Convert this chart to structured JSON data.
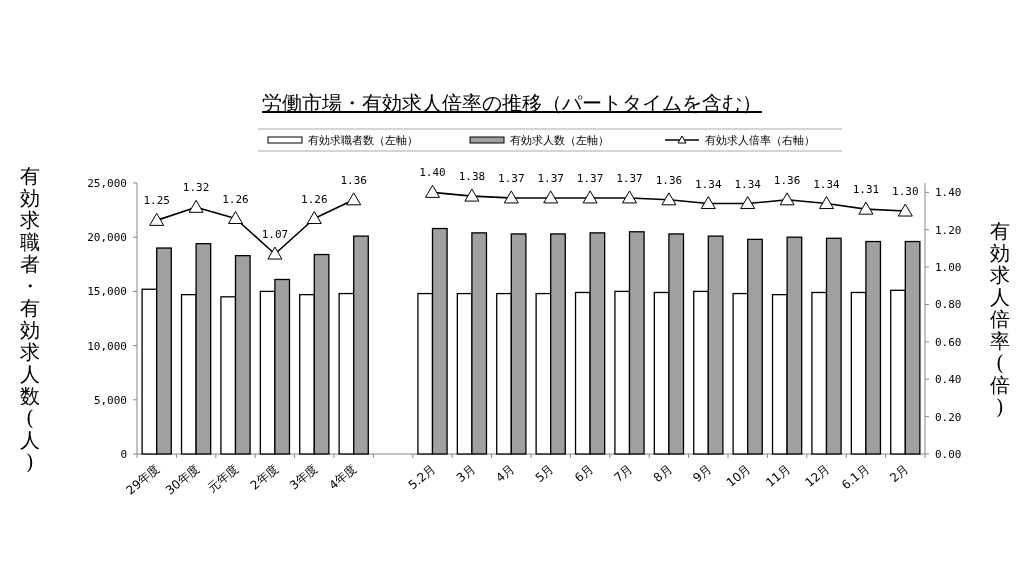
{
  "chart_data": {
    "type": "bar",
    "title": "労働市場・有効求人倍率の推移（パートタイムを含む）",
    "ylabel": "有効求職者・有効求人数(人)",
    "y2label": "有効求人倍率(倍)",
    "categories": [
      "29年度",
      "30年度",
      "元年度",
      "2年度",
      "3年度",
      "4年度",
      null,
      "5.2月",
      "3月",
      "4月",
      "5月",
      "6月",
      "7月",
      "8月",
      "9月",
      "10月",
      "11月",
      "12月",
      "6.1月",
      "2月"
    ],
    "series": [
      {
        "name": "有効求職者数（左軸）",
        "color": "#ffffff",
        "values": [
          15200,
          14700,
          14500,
          15000,
          14700,
          14800,
          null,
          14800,
          14800,
          14800,
          14800,
          14900,
          15000,
          14900,
          15000,
          14800,
          14700,
          14900,
          14900,
          15100
        ]
      },
      {
        "name": "有効求人数（左軸）",
        "color": "#a0a0a0",
        "values": [
          19000,
          19400,
          18300,
          16100,
          18400,
          20100,
          null,
          20800,
          20400,
          20300,
          20300,
          20400,
          20500,
          20300,
          20100,
          19800,
          20000,
          19900,
          19600,
          19600
        ]
      },
      {
        "name": "有効求人倍率（右軸）",
        "type": "line",
        "axis": "y2",
        "color": "#000000",
        "marker": "triangle",
        "values": [
          1.25,
          1.32,
          1.26,
          1.07,
          1.26,
          1.36,
          null,
          1.4,
          1.38,
          1.37,
          1.37,
          1.37,
          1.37,
          1.36,
          1.34,
          1.34,
          1.36,
          1.34,
          1.31,
          1.3
        ],
        "value_labels": [
          "1.25",
          "1.32",
          "1.26",
          "1.07",
          "1.26",
          "1.36",
          null,
          "1.40",
          "1.38",
          "1.37",
          "1.37",
          "1.37",
          "1.37",
          "1.36",
          "1.34",
          "1.34",
          "1.36",
          "1.34",
          "1.31",
          "1.30"
        ]
      }
    ],
    "ylim": [
      0,
      25000
    ],
    "yticks": [
      0,
      {
        "value": 5000,
        "label": "5,000"
      },
      {
        "value": 10000,
        "label": "10,000"
      },
      {
        "value": 15000,
        "label": "15,000"
      },
      {
        "value": 20000,
        "label": "20,000"
      },
      {
        "value": 25000,
        "label": "25,000"
      }
    ],
    "y2lim": [
      0,
      1.45
    ],
    "y2ticks": [
      {
        "value": 0,
        "label": "0.00"
      },
      {
        "value": 0.2,
        "label": "0.20"
      },
      {
        "value": 0.4,
        "label": "0.40"
      },
      {
        "value": 0.6,
        "label": "0.60"
      },
      {
        "value": 0.8,
        "label": "0.80"
      },
      {
        "value": 1.0,
        "label": "1.00"
      },
      {
        "value": 1.2,
        "label": "1.20"
      },
      {
        "value": 1.4,
        "label": "1.40"
      }
    ],
    "legend": "top",
    "grid": false
  }
}
